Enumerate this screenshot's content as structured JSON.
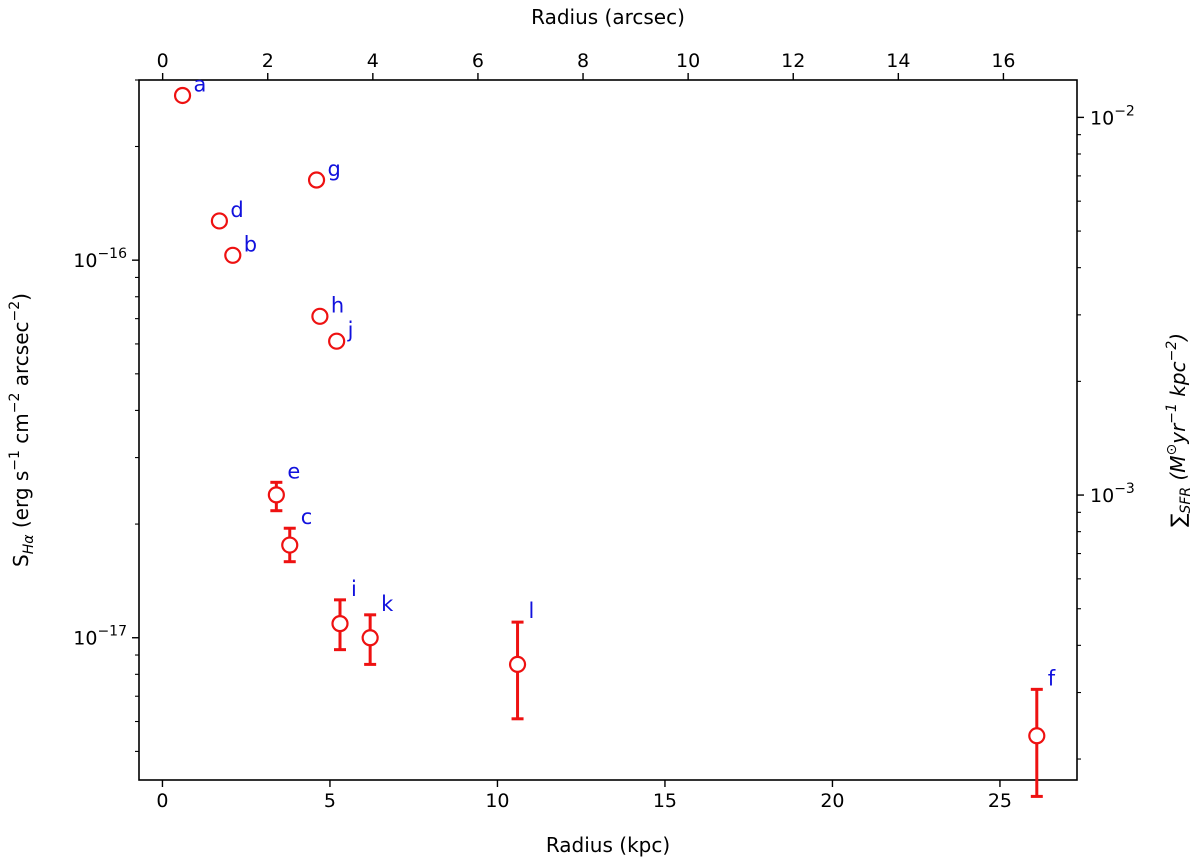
{
  "chart_data": {
    "type": "scatter",
    "xlabel": "Radius (kpc)",
    "x2label": "Radius (arcsec)",
    "ylabel_parts": [
      "S",
      "Hα",
      " (erg s",
      "−1",
      " cm",
      "−2",
      " arcsec",
      "−2",
      ")"
    ],
    "y2label_parts": [
      "∑",
      "SFR",
      "  (M",
      "⊙",
      "yr",
      "−1",
      " kpc",
      "−2",
      ")"
    ],
    "xlim": [
      -0.7,
      27.3
    ],
    "ylim": [
      4.2e-18,
      3e-16
    ],
    "yscale": "log",
    "x2lim": [
      -0.45,
      17.4
    ],
    "y2lim": [
      0.000176,
      0.01256
    ],
    "x_ticks": [
      0,
      5,
      10,
      15,
      20,
      25
    ],
    "x_tick_labels": [
      "0",
      "5",
      "10",
      "15",
      "20",
      "25"
    ],
    "x2_ticks": [
      0,
      2,
      4,
      6,
      8,
      10,
      12,
      14,
      16
    ],
    "x2_tick_labels": [
      "0",
      "2",
      "4",
      "6",
      "8",
      "10",
      "12",
      "14",
      "16"
    ],
    "y_major_ticks": [
      1e-17,
      1e-16
    ],
    "y_tick_labels": [
      [
        "10",
        "−17"
      ],
      [
        "10",
        "−16"
      ]
    ],
    "y2_major_ticks": [
      0.001,
      0.01
    ],
    "y2_tick_labels": [
      [
        "10",
        "−3"
      ],
      [
        "10",
        "−2"
      ]
    ],
    "grid": false,
    "marker_color": "#ee1111",
    "label_color": "#1111dd",
    "points": [
      {
        "label": "a",
        "x": 0.6,
        "y": 2.73e-16
      },
      {
        "label": "d",
        "x": 1.7,
        "y": 1.27e-16
      },
      {
        "label": "b",
        "x": 2.1,
        "y": 1.03e-16
      },
      {
        "label": "g",
        "x": 4.6,
        "y": 1.63e-16
      },
      {
        "label": "h",
        "x": 4.7,
        "y": 7.1e-17
      },
      {
        "label": "j",
        "x": 5.2,
        "y": 6.1e-17
      },
      {
        "label": "e",
        "x": 3.4,
        "y": 2.39e-17,
        "err_lo": 2.17e-17,
        "err_hi": 2.58e-17
      },
      {
        "label": "c",
        "x": 3.8,
        "y": 1.76e-17,
        "err_lo": 1.59e-17,
        "err_hi": 1.95e-17
      },
      {
        "label": "i",
        "x": 5.3,
        "y": 1.09e-17,
        "err_lo": 9.3e-18,
        "err_hi": 1.26e-17
      },
      {
        "label": "k",
        "x": 6.2,
        "y": 1e-17,
        "err_lo": 8.5e-18,
        "err_hi": 1.15e-17
      },
      {
        "label": "l",
        "x": 10.6,
        "y": 8.5e-18,
        "err_lo": 6.1e-18,
        "err_hi": 1.1e-17
      },
      {
        "label": "f",
        "x": 26.1,
        "y": 5.5e-18,
        "err_lo": 3.8e-18,
        "err_hi": 7.3e-18
      }
    ]
  }
}
